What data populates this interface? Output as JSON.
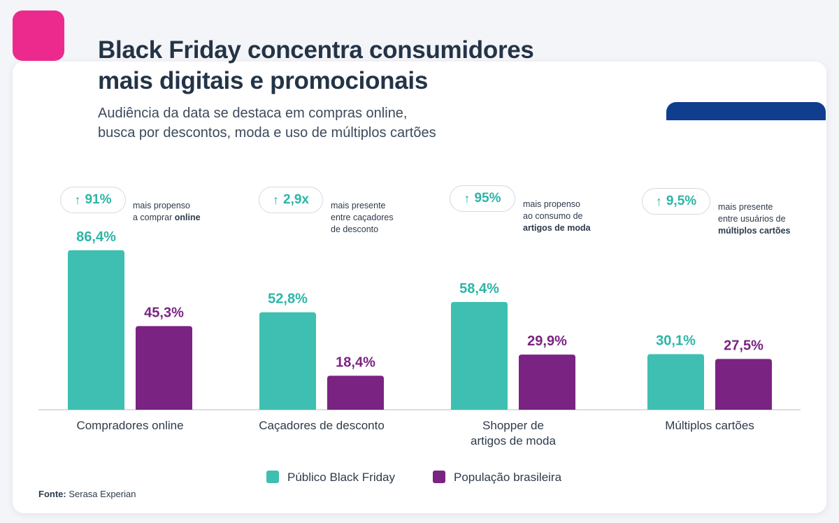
{
  "header": {
    "title": "Black Friday concentra consumidores\nmais digitais e promocionais",
    "subtitle": "Audiência da data se destaca em compras online,\nbusca por descontos, moda e uso de múltiplos cartões"
  },
  "badges": [
    {
      "value": "91%",
      "note_plain": "mais propenso\na comprar ",
      "note_bold": "online"
    },
    {
      "value": "2,9x",
      "note_plain": "mais presente\nentre caçadores\nde desconto",
      "note_bold": ""
    },
    {
      "value": "95%",
      "note_plain": "mais propenso\nao consumo de\n",
      "note_bold": "artigos de moda"
    },
    {
      "value": "9,5%",
      "note_plain": "mais presente\nentre usuários de\n",
      "note_bold": "múltiplos cartões"
    }
  ],
  "chart_data": {
    "type": "bar",
    "categories": [
      "Compradores online",
      "Caçadores de desconto",
      "Shopper de\nartigos de moda",
      "Múltiplos cartões"
    ],
    "series": [
      {
        "name": "Público Black Friday",
        "values": [
          86.4,
          52.8,
          58.4,
          30.1
        ],
        "labels": [
          "86,4%",
          "52,8%",
          "58,4%",
          "30,1%"
        ],
        "color": "#3ebfb1"
      },
      {
        "name": "População brasileira",
        "values": [
          45.3,
          18.4,
          29.9,
          27.5
        ],
        "labels": [
          "45,3%",
          "18,4%",
          "29,9%",
          "27,5%"
        ],
        "color": "#7a2382"
      }
    ],
    "ylim": [
      0,
      100
    ],
    "label_colors": [
      "#2cb5a7",
      "#7a2382"
    ],
    "legend": "bottom-center",
    "grid": false
  },
  "footer": {
    "source_label": "Fonte:",
    "source_value": "Serasa Experian"
  },
  "colors": {
    "accent_pink": "#ec2a8e",
    "accent_blue": "#0f3e8e",
    "title": "#243447"
  }
}
